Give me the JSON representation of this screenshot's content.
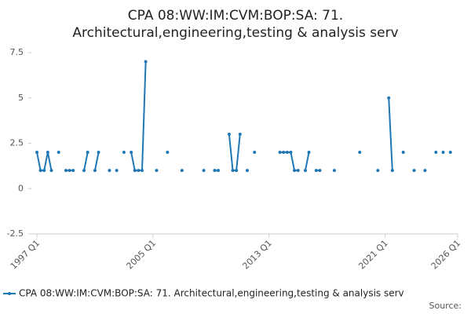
{
  "chart_data": {
    "type": "line",
    "title": [
      "CPA 08:WW:IM:CVM:BOP:SA: 71.",
      "Architectural,engineering,testing & analysis serv"
    ],
    "source": "Source:",
    "series": [
      {
        "name": "CPA 08:WW:IM:CVM:BOP:SA: 71. Architectural,engineering,testing & analysis serv",
        "color": "#1f77b4",
        "x": [
          1997,
          1997.25,
          1997.5,
          1997.75,
          1998,
          1998.25,
          1998.5,
          1998.75,
          1999,
          1999.25,
          1999.5,
          1999.75,
          2000.25,
          2000.5,
          2000.75,
          2001,
          2001.25,
          2001.5,
          2002,
          2002.25,
          2002.5,
          2002.75,
          2003,
          2003.25,
          2003.5,
          2003.75,
          2004,
          2004.25,
          2004.5,
          2004.75,
          2005.25,
          2005.5,
          2006,
          2006.25,
          2007,
          2007.25,
          2008.5,
          2008.75,
          2009.25,
          2009.5,
          2009.75,
          2010.25,
          2010.5,
          2010.75,
          2011,
          2011.25,
          2011.5,
          2011.75,
          2012,
          2012.25,
          2013.75,
          2014,
          2014.25,
          2014.5,
          2014.75,
          2015,
          2015.25,
          2015.5,
          2015.75,
          2016,
          2016.25,
          2016.5,
          2016.75,
          2017.5,
          2017.75,
          2019.25,
          2019.5,
          2020.5,
          2020.75,
          2021.25,
          2021.5,
          2021.75,
          2022.25,
          2022.5,
          2023,
          2023.25,
          2023.75,
          2024,
          2024.5,
          2024.75,
          2025,
          2025.25,
          2025.5
        ],
        "values": [
          2,
          1,
          1,
          2,
          1,
          null,
          2,
          null,
          1,
          1,
          1,
          null,
          1,
          2,
          null,
          1,
          2,
          null,
          1,
          null,
          1,
          null,
          2,
          null,
          2,
          1,
          1,
          1,
          7,
          null,
          1,
          null,
          2,
          null,
          1,
          null,
          1,
          null,
          1,
          1,
          null,
          3,
          1,
          1,
          3,
          null,
          1,
          null,
          2,
          null,
          2,
          2,
          2,
          2,
          1,
          1,
          null,
          1,
          2,
          null,
          1,
          1,
          null,
          1,
          null,
          2,
          null,
          1,
          null,
          5,
          1,
          null,
          2,
          null,
          1,
          null,
          1,
          null,
          2,
          null,
          2,
          null,
          2
        ]
      }
    ],
    "xlim": [
      1997,
      2026
    ],
    "xticks": [
      {
        "value": 1997,
        "label": "1997 Q1"
      },
      {
        "value": 2005,
        "label": "2005 Q1"
      },
      {
        "value": 2013,
        "label": "2013 Q1"
      },
      {
        "value": 2021,
        "label": "2021 Q1"
      },
      {
        "value": 2026,
        "label": "2026 Q1"
      }
    ],
    "ylim": [
      -2.5,
      7.5
    ],
    "yticks": [
      -2.5,
      0,
      2.5,
      5,
      7.5
    ],
    "grid": false
  }
}
